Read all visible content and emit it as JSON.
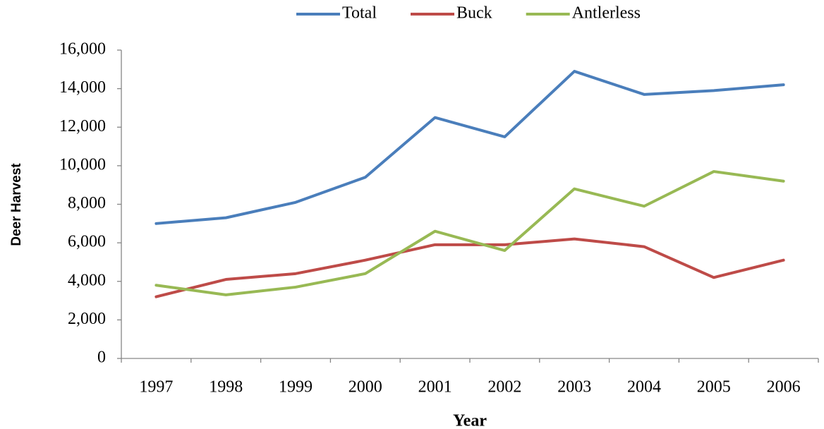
{
  "chart_data": {
    "type": "line",
    "xlabel": "Year",
    "ylabel": "Deer Harvest",
    "categories": [
      "1997",
      "1998",
      "1999",
      "2000",
      "2001",
      "2002",
      "2003",
      "2004",
      "2005",
      "2006"
    ],
    "series": [
      {
        "name": "Total",
        "color": "#4a7ebb",
        "values": [
          7000,
          7300,
          8100,
          9400,
          12500,
          11500,
          14900,
          13700,
          13900,
          14200
        ]
      },
      {
        "name": "Buck",
        "color": "#be4b48",
        "values": [
          3200,
          4100,
          4400,
          5100,
          5900,
          5900,
          6200,
          5800,
          4200,
          5100
        ]
      },
      {
        "name": "Antlerless",
        "color": "#98b954",
        "values": [
          3800,
          3300,
          3700,
          4400,
          6600,
          5600,
          8800,
          7900,
          9700,
          9200
        ]
      }
    ],
    "ylim": [
      0,
      16000
    ],
    "yticks": [
      0,
      {
        "value": 2000,
        "label": "2,000"
      },
      {
        "value": 4000,
        "label": "4,000"
      },
      {
        "value": 6000,
        "label": "6,000"
      },
      {
        "value": 8000,
        "label": "8,000"
      },
      {
        "value": 10000,
        "label": "10,000"
      },
      {
        "value": 12000,
        "label": "12,000"
      },
      {
        "value": 14000,
        "label": "14,000"
      },
      {
        "value": 16000,
        "label": "16,000"
      }
    ],
    "grid": false,
    "legend": "top"
  }
}
